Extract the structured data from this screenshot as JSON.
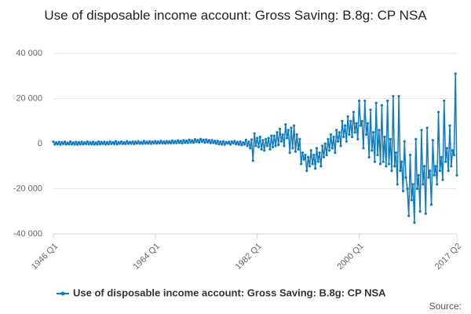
{
  "chart_data": {
    "type": "line",
    "title": "Use of disposable income account: Gross Saving: B.8g: CP NSA",
    "source": "Source:",
    "categories": [
      "1946 Q1",
      null,
      null,
      null,
      null,
      null,
      null,
      null,
      null,
      null,
      null,
      null,
      null,
      null,
      null,
      null,
      null,
      null,
      null,
      null,
      null,
      null,
      null,
      null,
      null,
      null,
      null,
      null,
      null,
      null,
      null,
      null,
      null,
      null,
      null,
      null,
      null,
      null,
      null,
      null,
      null,
      null,
      null,
      null,
      null,
      null,
      null,
      null,
      null,
      null,
      null,
      null,
      null,
      null,
      null,
      null,
      null,
      null,
      null,
      null,
      null,
      null,
      null,
      null,
      null,
      null,
      null,
      null,
      null,
      null,
      null,
      null,
      "1964 Q1",
      null,
      null,
      null,
      null,
      null,
      null,
      null,
      null,
      null,
      null,
      null,
      null,
      null,
      null,
      null,
      null,
      null,
      null,
      null,
      null,
      null,
      null,
      null,
      null,
      null,
      null,
      null,
      null,
      null,
      null,
      null,
      null,
      null,
      null,
      null,
      null,
      null,
      null,
      null,
      null,
      null,
      null,
      null,
      null,
      null,
      null,
      null,
      null,
      null,
      null,
      null,
      null,
      null,
      null,
      null,
      null,
      null,
      null,
      null,
      null,
      null,
      null,
      null,
      null,
      null,
      null,
      null,
      null,
      null,
      null,
      null,
      "1982 Q1",
      null,
      null,
      null,
      null,
      null,
      null,
      null,
      null,
      null,
      null,
      null,
      null,
      null,
      null,
      null,
      null,
      null,
      null,
      null,
      null,
      null,
      null,
      null,
      null,
      null,
      null,
      null,
      null,
      null,
      null,
      null,
      null,
      null,
      null,
      null,
      null,
      null,
      null,
      null,
      null,
      null,
      null,
      null,
      null,
      null,
      null,
      null,
      null,
      null,
      null,
      null,
      null,
      null,
      null,
      null,
      null,
      null,
      null,
      null,
      null,
      null,
      null,
      null,
      null,
      null,
      null,
      null,
      null,
      null,
      null,
      null,
      "2000 Q1",
      null,
      null,
      null,
      null,
      null,
      null,
      null,
      null,
      null,
      null,
      null,
      null,
      null,
      null,
      null,
      null,
      null,
      null,
      null,
      null,
      null,
      null,
      null,
      null,
      null,
      null,
      null,
      null,
      null,
      null,
      null,
      null,
      null,
      null,
      null,
      null,
      null,
      null,
      null,
      null,
      null,
      null,
      null,
      null,
      null,
      null,
      null,
      null,
      null,
      null,
      null,
      null,
      null,
      null,
      null,
      null,
      null,
      null,
      null,
      null,
      null,
      null,
      null,
      null,
      null,
      null,
      null,
      null,
      "2017 Q2"
    ],
    "series": [
      {
        "name": "Use of disposable income account: Gross Saving: B.8g: CP NSA",
        "color": "#0f7bc0",
        "values": [
          900,
          -300,
          500,
          -200,
          700,
          -400,
          600,
          -100,
          800,
          -300,
          400,
          -200,
          900,
          -200,
          500,
          -300,
          700,
          -400,
          600,
          -200,
          800,
          -300,
          500,
          -100,
          900,
          -200,
          600,
          -200,
          800,
          -300,
          500,
          -300,
          900,
          -200,
          700,
          -100,
          800,
          -300,
          600,
          -200,
          900,
          -100,
          600,
          -100,
          1000,
          -200,
          700,
          0,
          900,
          -100,
          600,
          -100,
          1000,
          0,
          700,
          0,
          900,
          -100,
          800,
          100,
          1000,
          0,
          700,
          0,
          1100,
          100,
          800,
          100,
          1000,
          0,
          900,
          200,
          1100,
          100,
          900,
          200,
          1200,
          200,
          900,
          100,
          1100,
          300,
          1000,
          200,
          1300,
          300,
          1100,
          300,
          1400,
          400,
          1200,
          200,
          1500,
          500,
          1300,
          400,
          1700,
          600,
          1400,
          500,
          1900,
          800,
          1600,
          600,
          2000,
          900,
          1700,
          500,
          1800,
          700,
          1500,
          300,
          1500,
          400,
          1200,
          100,
          1200,
          -200,
          900,
          -300,
          1000,
          -400,
          700,
          100,
          800,
          -300,
          900,
          200,
          1100,
          -200,
          700,
          -400,
          900,
          -600,
          500,
          -300,
          1600,
          -900,
          800,
          -2000,
          1800,
          -7500,
          4500,
          -1000,
          2500,
          -1500,
          3000,
          -2500,
          1500,
          -3000,
          2000,
          -1000,
          2500,
          -2500,
          3500,
          -1500,
          3500,
          -1000,
          5000,
          -500,
          6500,
          1000,
          4000,
          -1000,
          8500,
          2500,
          6000,
          -4000,
          7000,
          -2000,
          8000,
          -3500,
          4000,
          -2500,
          2000,
          -9000,
          -4000,
          -7000,
          -5000,
          -12000,
          -6000,
          -10000,
          -3000,
          -9000,
          -5000,
          -11000,
          -2000,
          -8000,
          -4000,
          -10000,
          -1000,
          -6000,
          0,
          -5000,
          2000,
          -3000,
          4000,
          -2000,
          3000,
          -4000,
          6000,
          1000,
          5000,
          -1000,
          10000,
          3000,
          8000,
          1000,
          12000,
          4000,
          10000,
          3000,
          14000,
          5000,
          9000,
          2000,
          19000,
          8000,
          10000,
          -2000,
          19000,
          4000,
          9000,
          -6000,
          15000,
          -3000,
          5000,
          -8000,
          18000,
          -5000,
          6000,
          -9000,
          17000,
          -8000,
          3000,
          -10000,
          19000,
          -9000,
          2000,
          -12000,
          21000,
          -10000,
          -4000,
          -18000,
          21000,
          -12000,
          -8000,
          -21000,
          1000,
          -15000,
          -20000,
          -32000,
          -5000,
          -25000,
          -18000,
          -35000,
          2000,
          -20000,
          -14000,
          -30000,
          6000,
          -18000,
          -10000,
          -31000,
          7000,
          -15000,
          -12000,
          -27000,
          1500,
          -14000,
          -10000,
          -18000,
          14000,
          -12000,
          -6000,
          -16000,
          19000,
          -8000,
          -2000,
          -12000,
          8000,
          -10000,
          -3000,
          -5000,
          31000,
          -14000
        ]
      }
    ],
    "ylim": [
      -40000,
      40000
    ],
    "yticks": [
      {
        "value": -40000,
        "label": "-40 000"
      },
      {
        "value": -20000,
        "label": "-20 000"
      },
      0,
      {
        "value": 20000,
        "label": "20 000"
      },
      {
        "value": 40000,
        "label": "40 000"
      }
    ],
    "grid": true
  }
}
